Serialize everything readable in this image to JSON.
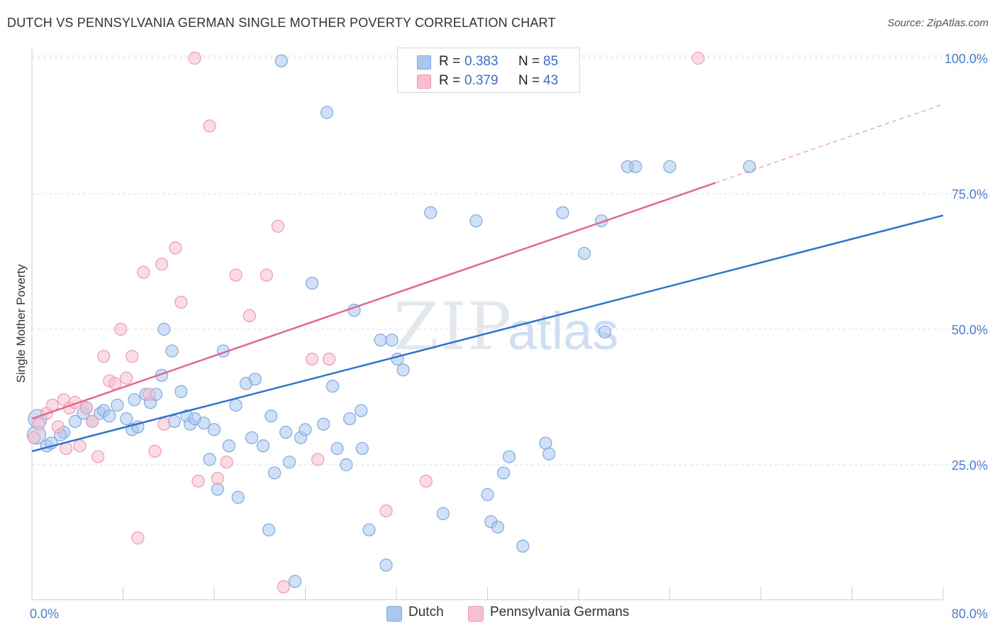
{
  "header": {
    "title": "DUTCH VS PENNSYLVANIA GERMAN SINGLE MOTHER POVERTY CORRELATION CHART",
    "source": "Source: ZipAtlas.com"
  },
  "legend": {
    "rows": [
      {
        "r_label": "R = ",
        "r_value": "0.383",
        "n_label": "N = ",
        "n_value": "85"
      },
      {
        "r_label": "R = ",
        "r_value": "0.379",
        "n_label": "N = ",
        "n_value": "43"
      }
    ]
  },
  "bottom_legend": [
    "Dutch",
    "Pennsylvania Germans"
  ],
  "watermark": {
    "zip": "ZIP",
    "atlas": "atlas"
  },
  "colors": {
    "dutch_fill": "#a9c8f0",
    "dutch_stroke": "#7fa9de",
    "dutch_line": "#2f74cc",
    "pg_fill": "#f7bfd0",
    "pg_stroke": "#ee9ab5",
    "pg_line": "#e06892",
    "tick_text": "#4a7fd0",
    "grid": "#dddddd"
  },
  "chart_data": {
    "type": "scatter",
    "title": "DUTCH VS PENNSYLVANIA GERMAN SINGLE MOTHER POVERTY CORRELATION CHART",
    "xlabel": "",
    "ylabel": "Single Mother Poverty",
    "xlim": [
      0,
      80
    ],
    "ylim": [
      0,
      105
    ],
    "x_tick_labels": [
      "0.0%",
      "80.0%"
    ],
    "y_ticks": [
      25,
      50,
      75,
      100
    ],
    "y_tick_labels": [
      "25.0%",
      "50.0%",
      "75.0%",
      "100.0%"
    ],
    "grid": true,
    "legend_position": "top-center",
    "series": [
      {
        "name": "Dutch",
        "r": 0.383,
        "n": 85,
        "trend": {
          "x": [
            0,
            80
          ],
          "y": [
            27.5,
            71.0
          ]
        },
        "points": [
          [
            0.4,
            30.5
          ],
          [
            0.5,
            33.5
          ],
          [
            1.3,
            28.5
          ],
          [
            1.7,
            29.0
          ],
          [
            2.8,
            31.0
          ],
          [
            2.5,
            30.5
          ],
          [
            3.8,
            33.0
          ],
          [
            4.5,
            34.5
          ],
          [
            4.8,
            35.5
          ],
          [
            5.3,
            33.0
          ],
          [
            6.0,
            34.5
          ],
          [
            6.3,
            35.0
          ],
          [
            6.8,
            34.0
          ],
          [
            7.5,
            36.0
          ],
          [
            8.3,
            33.5
          ],
          [
            8.8,
            31.5
          ],
          [
            9.3,
            32.0
          ],
          [
            10.0,
            38.0
          ],
          [
            10.4,
            36.5
          ],
          [
            10.9,
            38.0
          ],
          [
            11.4,
            41.5
          ],
          [
            11.6,
            50.0
          ],
          [
            12.3,
            46.0
          ],
          [
            13.1,
            38.5
          ],
          [
            13.6,
            34.0
          ],
          [
            13.9,
            32.5
          ],
          [
            14.3,
            33.5
          ],
          [
            15.1,
            32.7
          ],
          [
            15.6,
            26.0
          ],
          [
            16.0,
            31.5
          ],
          [
            16.3,
            20.5
          ],
          [
            16.8,
            46.0
          ],
          [
            17.3,
            28.5
          ],
          [
            17.9,
            36.0
          ],
          [
            18.1,
            19.0
          ],
          [
            18.8,
            40.0
          ],
          [
            19.3,
            30.0
          ],
          [
            19.6,
            40.8
          ],
          [
            20.3,
            28.5
          ],
          [
            20.8,
            13.0
          ],
          [
            21.3,
            23.5
          ],
          [
            21.9,
            99.5
          ],
          [
            22.3,
            31.0
          ],
          [
            22.6,
            25.5
          ],
          [
            23.1,
            3.5
          ],
          [
            23.6,
            30.0
          ],
          [
            24.6,
            58.5
          ],
          [
            25.6,
            32.5
          ],
          [
            25.9,
            90.0
          ],
          [
            26.4,
            39.5
          ],
          [
            26.8,
            28.0
          ],
          [
            27.6,
            25.0
          ],
          [
            27.9,
            33.5
          ],
          [
            28.3,
            53.5
          ],
          [
            28.9,
            35.0
          ],
          [
            29.6,
            13.0
          ],
          [
            30.6,
            48.0
          ],
          [
            31.1,
            6.5
          ],
          [
            31.6,
            48.0
          ],
          [
            32.1,
            44.5
          ],
          [
            32.6,
            42.5
          ],
          [
            35.0,
            71.5
          ],
          [
            36.1,
            16.0
          ],
          [
            39.0,
            70.0
          ],
          [
            40.0,
            19.5
          ],
          [
            40.3,
            14.5
          ],
          [
            40.9,
            13.5
          ],
          [
            41.4,
            23.5
          ],
          [
            41.9,
            26.5
          ],
          [
            43.1,
            10.0
          ],
          [
            45.1,
            29.0
          ],
          [
            45.4,
            27.0
          ],
          [
            46.6,
            71.5
          ],
          [
            48.5,
            64.0
          ],
          [
            50.0,
            70.0
          ],
          [
            50.3,
            49.5
          ],
          [
            52.3,
            80.0
          ],
          [
            53.0,
            80.0
          ],
          [
            56.0,
            80.0
          ],
          [
            63.0,
            80.0
          ],
          [
            29.0,
            28.0
          ],
          [
            24.0,
            31.5
          ],
          [
            12.5,
            33.0
          ],
          [
            9.0,
            37.0
          ],
          [
            21.0,
            34.0
          ]
        ]
      },
      {
        "name": "Pennsylvania Germans",
        "r": 0.379,
        "n": 43,
        "trend": {
          "x": [
            0,
            60
          ],
          "y": [
            33.5,
            77.0
          ],
          "dashed_to": {
            "x": 80,
            "y": 91.5
          }
        },
        "points": [
          [
            0.2,
            30.0
          ],
          [
            0.6,
            32.5
          ],
          [
            1.3,
            34.5
          ],
          [
            1.8,
            36.0
          ],
          [
            2.3,
            32.0
          ],
          [
            2.8,
            37.0
          ],
          [
            3.3,
            35.5
          ],
          [
            3.8,
            36.5
          ],
          [
            4.2,
            28.5
          ],
          [
            4.8,
            35.5
          ],
          [
            5.3,
            33.0
          ],
          [
            5.8,
            26.5
          ],
          [
            6.3,
            45.0
          ],
          [
            6.8,
            40.5
          ],
          [
            7.3,
            40.0
          ],
          [
            7.8,
            50.0
          ],
          [
            8.3,
            41.0
          ],
          [
            8.8,
            45.0
          ],
          [
            9.3,
            11.5
          ],
          [
            9.8,
            60.5
          ],
          [
            10.3,
            38.0
          ],
          [
            10.8,
            27.5
          ],
          [
            11.4,
            62.0
          ],
          [
            11.6,
            32.5
          ],
          [
            12.6,
            65.0
          ],
          [
            13.1,
            55.0
          ],
          [
            14.3,
            100.0
          ],
          [
            14.6,
            22.0
          ],
          [
            15.6,
            87.5
          ],
          [
            16.3,
            22.5
          ],
          [
            17.1,
            25.5
          ],
          [
            17.9,
            60.0
          ],
          [
            19.1,
            52.5
          ],
          [
            20.6,
            60.0
          ],
          [
            21.6,
            69.0
          ],
          [
            22.1,
            2.5
          ],
          [
            24.6,
            44.5
          ],
          [
            25.1,
            26.0
          ],
          [
            26.1,
            44.5
          ],
          [
            31.1,
            16.5
          ],
          [
            34.6,
            22.0
          ],
          [
            58.5,
            100.0
          ],
          [
            3.0,
            28.0
          ]
        ]
      }
    ]
  }
}
